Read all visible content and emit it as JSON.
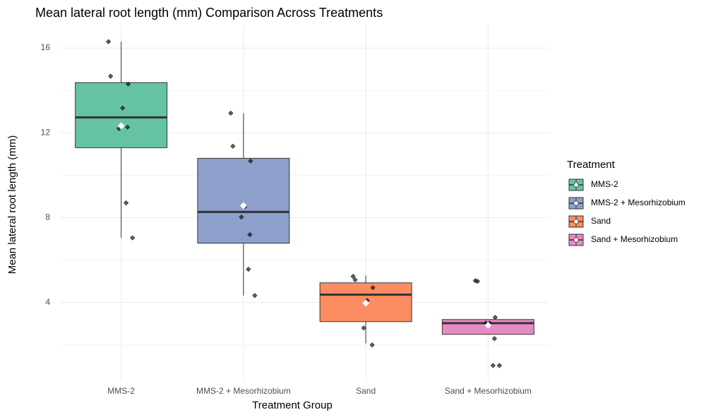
{
  "chart_data": {
    "type": "box",
    "title": "Mean lateral root length (mm) Comparison Across Treatments",
    "x_label": "Treatment Group",
    "y_label": "Mean lateral root length (mm)",
    "legend_title": "Treatment",
    "categories": [
      "MMS-2",
      "MMS-2 + Mesorhizobium",
      "Sand",
      "Sand + Mesorhizobium"
    ],
    "ylim": [
      0.3,
      17.1
    ],
    "yticks": [
      4,
      8,
      12,
      16
    ],
    "y_minor_ticks": [
      2,
      6,
      10,
      14
    ],
    "grid": true,
    "series": [
      {
        "name": "MMS-2",
        "color": "#66c2a5",
        "whisker_low": 7.05,
        "q1": 11.3,
        "median": 12.73,
        "q3": 14.37,
        "whisker_high": 16.3,
        "mean": 12.33,
        "points": [
          16.3,
          14.67,
          14.3,
          13.17,
          12.2,
          12.27,
          8.7,
          7.05
        ]
      },
      {
        "name": "MMS-2 + Mesorhizobium",
        "color": "#8da0cb",
        "whisker_low": 4.33,
        "q1": 6.8,
        "median": 8.27,
        "q3": 10.8,
        "whisker_high": 12.93,
        "mean": 8.57,
        "points": [
          12.93,
          11.37,
          10.67,
          8.53,
          8.03,
          7.2,
          5.57,
          4.33
        ]
      },
      {
        "name": "Sand",
        "color": "#fc8d62",
        "whisker_low": 2.07,
        "q1": 3.1,
        "median": 4.37,
        "q3": 4.93,
        "whisker_high": 5.27,
        "mean": 3.97,
        "points": [
          5.23,
          5.07,
          4.7,
          4.1,
          2.8,
          2.0
        ]
      },
      {
        "name": "Sand + Mesorhizobium",
        "color": "#e78ac3",
        "whisker_low": 2.5,
        "q1": 2.5,
        "median": 3.03,
        "q3": 3.2,
        "whisker_high": 3.2,
        "mean": 2.93,
        "points": [
          5.03,
          5.0,
          3.3,
          3.03,
          3.03,
          2.3,
          1.03,
          1.03
        ]
      }
    ]
  }
}
